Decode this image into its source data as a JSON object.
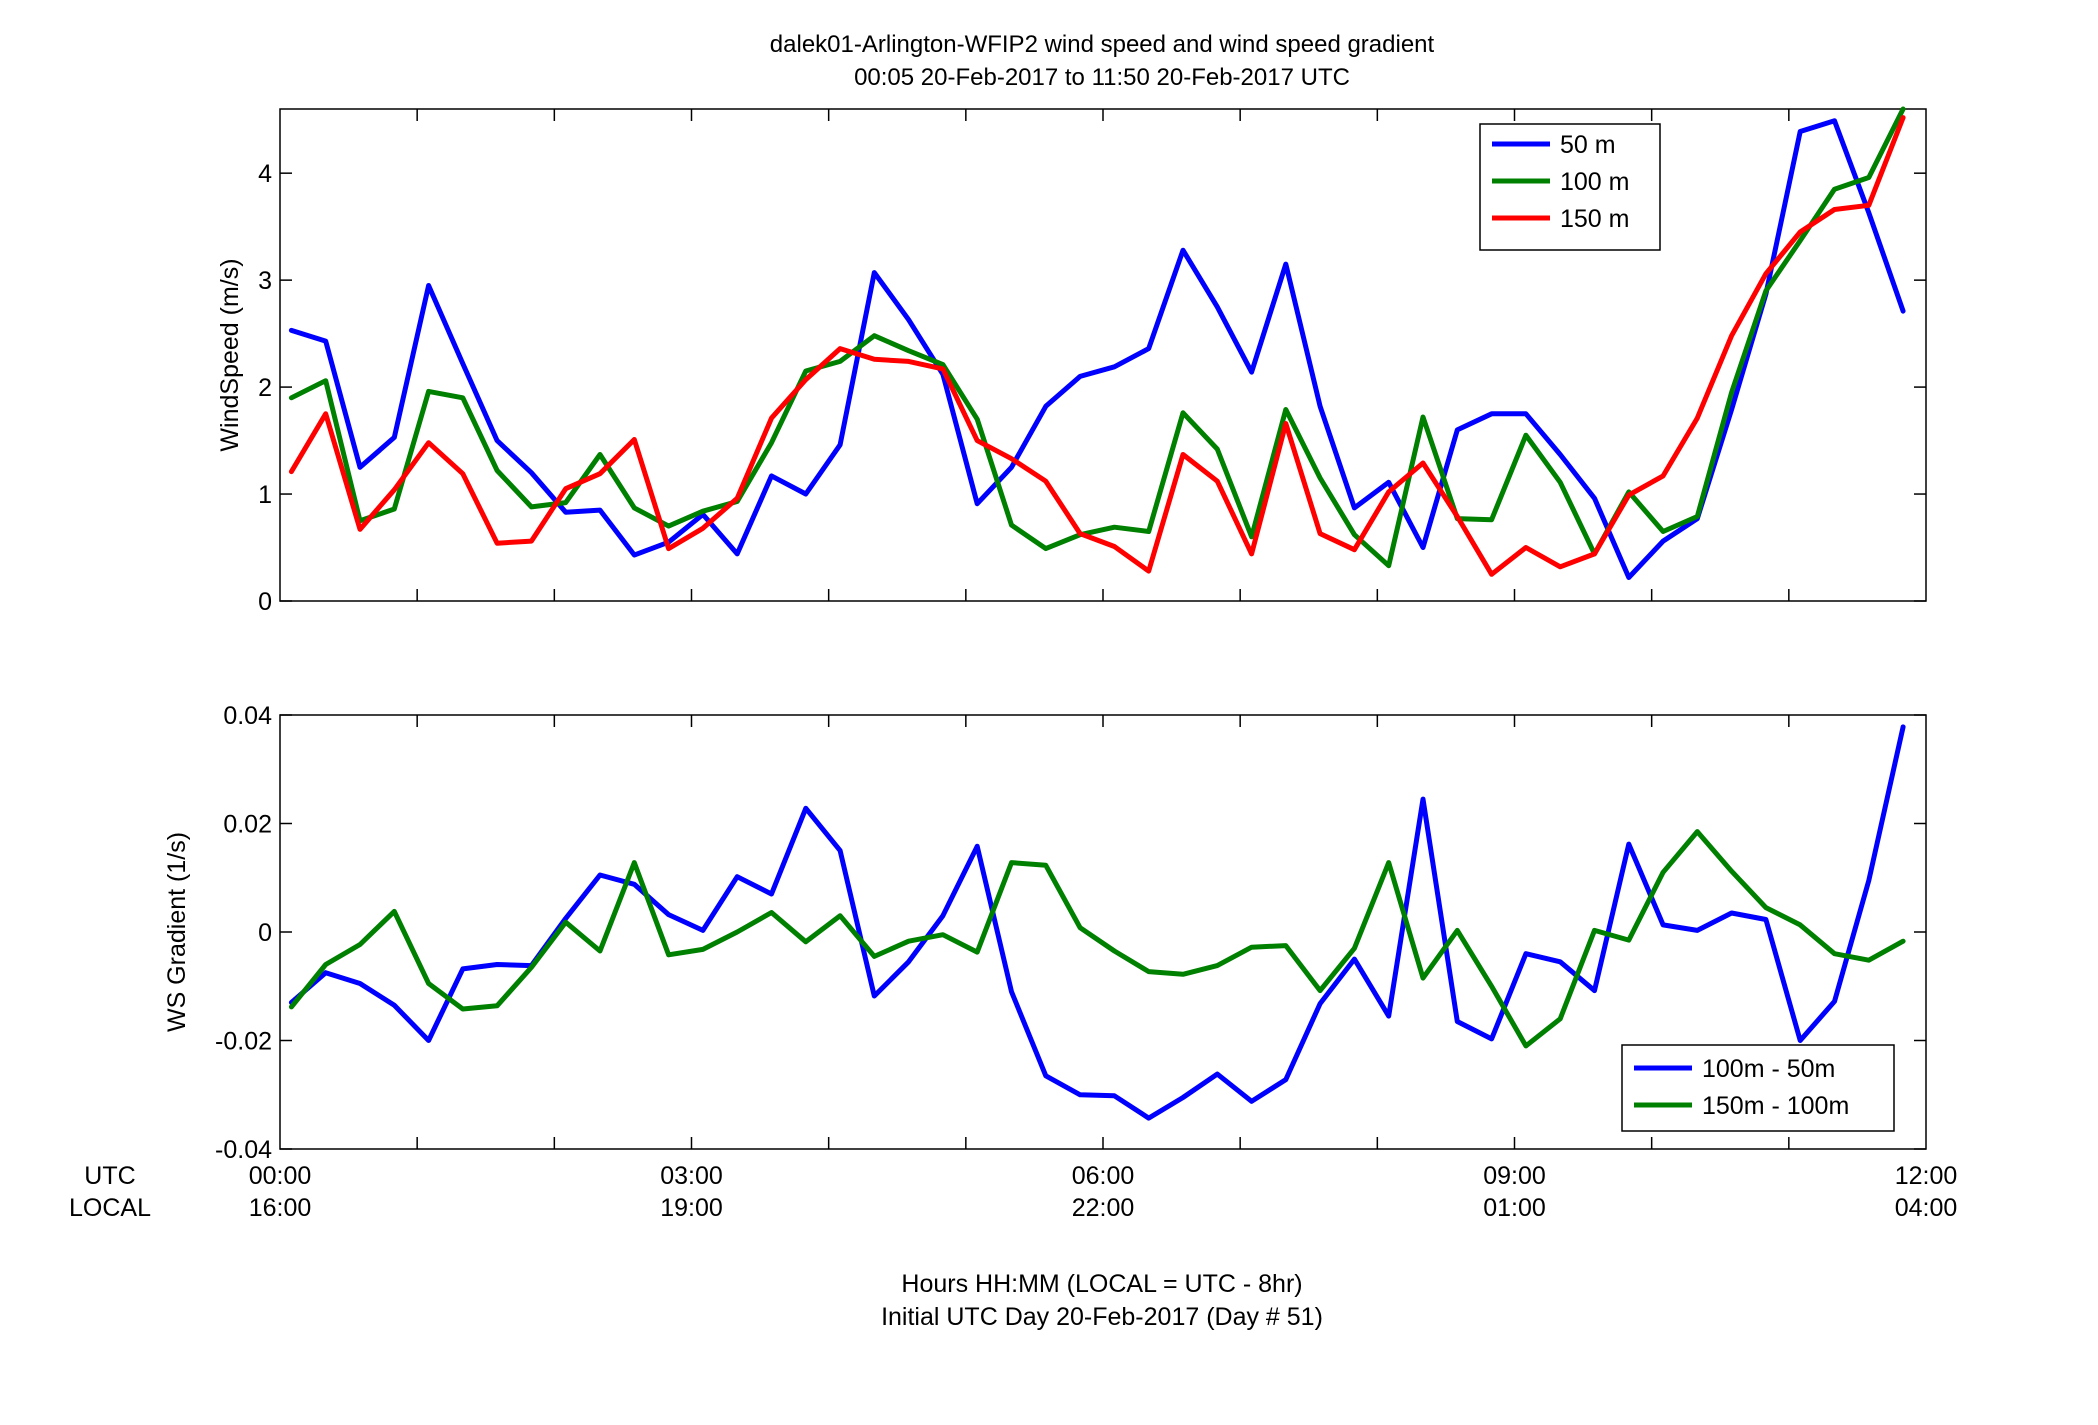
{
  "title_line1": "dalek01-Arlington-WFIP2  wind speed and wind speed gradient",
  "title_line2": "00:05 20-Feb-2017 to 11:50 20-Feb-2017  UTC",
  "row_labels": {
    "utc": "UTC",
    "local": "LOCAL"
  },
  "x_ticks": [
    {
      "h": 0,
      "utc": "00:00",
      "local": "16:00"
    },
    {
      "h": 3,
      "utc": "03:00",
      "local": "19:00"
    },
    {
      "h": 6,
      "utc": "06:00",
      "local": "22:00"
    },
    {
      "h": 9,
      "utc": "09:00",
      "local": "01:00"
    },
    {
      "h": 12,
      "utc": "12:00",
      "local": "04:00"
    }
  ],
  "xlabel_line1": "Hours HH:MM  (LOCAL = UTC - 8hr)",
  "xlabel_line2": "Initial UTC Day 20-Feb-2017 (Day # 51)",
  "chart_data": [
    {
      "type": "line",
      "ylabel": "WindSpeed (m/s)",
      "xlim": [
        0,
        12
      ],
      "ylim": [
        0,
        4.6
      ],
      "yticks": [
        0,
        1,
        2,
        3,
        4
      ],
      "ytick_labels": [
        "0",
        "1",
        "2",
        "3",
        "4"
      ],
      "grid": false,
      "legend_position": "top-right",
      "x": [
        0.083,
        0.333,
        0.583,
        0.833,
        1.083,
        1.333,
        1.583,
        1.833,
        2.083,
        2.333,
        2.583,
        2.833,
        3.083,
        3.333,
        3.583,
        3.833,
        4.083,
        4.333,
        4.583,
        4.833,
        5.083,
        5.333,
        5.583,
        5.833,
        6.083,
        6.333,
        6.583,
        6.833,
        7.083,
        7.333,
        7.583,
        7.833,
        8.083,
        8.333,
        8.583,
        8.833,
        9.083,
        9.333,
        9.583,
        9.833,
        10.083,
        10.333,
        10.583,
        10.833,
        11.083,
        11.333,
        11.583,
        11.833
      ],
      "series": [
        {
          "name": "50 m",
          "color": "#0000ff",
          "values": [
            2.53,
            2.43,
            1.25,
            1.53,
            2.95,
            2.22,
            1.5,
            1.2,
            0.83,
            0.85,
            0.43,
            0.55,
            0.81,
            0.44,
            1.17,
            1.0,
            1.46,
            3.07,
            2.63,
            2.12,
            0.91,
            1.25,
            1.82,
            2.1,
            2.19,
            2.36,
            3.28,
            2.75,
            2.14,
            3.15,
            1.82,
            0.87,
            1.11,
            0.5,
            1.6,
            1.75,
            1.75,
            1.37,
            0.96,
            0.22,
            0.56,
            0.77,
            1.79,
            2.87,
            4.39,
            4.49,
            3.63,
            2.71
          ]
        },
        {
          "name": "100 m",
          "color": "#008000",
          "values": [
            1.9,
            2.06,
            0.75,
            0.86,
            1.96,
            1.9,
            1.22,
            0.88,
            0.92,
            1.37,
            0.87,
            0.7,
            0.84,
            0.93,
            1.48,
            2.15,
            2.24,
            2.48,
            2.34,
            2.21,
            1.7,
            0.71,
            0.49,
            0.62,
            0.69,
            0.65,
            1.76,
            1.42,
            0.6,
            1.79,
            1.15,
            0.62,
            0.33,
            1.72,
            0.77,
            0.76,
            1.55,
            1.11,
            0.44,
            1.02,
            0.65,
            0.79,
            1.95,
            2.9,
            3.37,
            3.85,
            3.96,
            4.62
          ]
        },
        {
          "name": "150 m",
          "color": "#ff0000",
          "values": [
            1.21,
            1.75,
            0.67,
            1.04,
            1.48,
            1.19,
            0.54,
            0.56,
            1.05,
            1.19,
            1.51,
            0.49,
            0.68,
            0.96,
            1.71,
            2.07,
            2.36,
            2.26,
            2.24,
            2.17,
            1.5,
            1.33,
            1.12,
            0.63,
            0.51,
            0.28,
            1.37,
            1.12,
            0.44,
            1.66,
            0.63,
            0.48,
            1.02,
            1.29,
            0.79,
            0.25,
            0.5,
            0.32,
            0.44,
            0.99,
            1.17,
            1.71,
            2.48,
            3.06,
            3.45,
            3.66,
            3.7,
            4.52
          ]
        }
      ]
    },
    {
      "type": "line",
      "ylabel": "WS Gradient (1/s)",
      "xlim": [
        0,
        12
      ],
      "ylim": [
        -0.04,
        0.04
      ],
      "yticks": [
        -0.04,
        -0.02,
        0,
        0.02,
        0.04
      ],
      "ytick_labels": [
        "-0.04",
        "-0.02",
        "0",
        "0.02",
        "0.04"
      ],
      "grid": false,
      "legend_position": "bottom-right",
      "x": [
        0.083,
        0.333,
        0.583,
        0.833,
        1.083,
        1.333,
        1.583,
        1.833,
        2.083,
        2.333,
        2.583,
        2.833,
        3.083,
        3.333,
        3.583,
        3.833,
        4.083,
        4.333,
        4.583,
        4.833,
        5.083,
        5.333,
        5.583,
        5.833,
        6.083,
        6.333,
        6.583,
        6.833,
        7.083,
        7.333,
        7.583,
        7.833,
        8.083,
        8.333,
        8.583,
        8.833,
        9.083,
        9.333,
        9.583,
        9.833,
        10.083,
        10.333,
        10.583,
        10.833,
        11.083,
        11.333,
        11.583,
        11.833
      ],
      "series": [
        {
          "name": "100m - 50m",
          "color": "#0000ff",
          "values": [
            -0.013,
            -0.0075,
            -0.0095,
            -0.0135,
            -0.02,
            -0.0068,
            -0.006,
            -0.0062,
            0.0025,
            0.0105,
            0.0088,
            0.0032,
            0.0003,
            0.0102,
            0.007,
            0.0228,
            0.015,
            -0.0118,
            -0.0055,
            0.003,
            0.0158,
            -0.011,
            -0.0265,
            -0.03,
            -0.0302,
            -0.0343,
            -0.0305,
            -0.0262,
            -0.0312,
            -0.0272,
            -0.0132,
            -0.005,
            -0.0155,
            0.0245,
            -0.0165,
            -0.0197,
            -0.004,
            -0.0055,
            -0.0108,
            0.0162,
            0.0013,
            0.0003,
            0.0035,
            0.0023,
            -0.02,
            -0.0128,
            0.0095,
            0.0378
          ]
        },
        {
          "name": "150m - 100m",
          "color": "#008000",
          "values": [
            -0.0138,
            -0.006,
            -0.0023,
            0.0038,
            -0.0095,
            -0.0142,
            -0.0136,
            -0.0065,
            0.0018,
            -0.0035,
            0.0128,
            -0.0042,
            -0.0032,
            0.0,
            0.0036,
            -0.0018,
            0.003,
            -0.0045,
            -0.0017,
            -0.0005,
            -0.0037,
            0.0128,
            0.0123,
            0.0008,
            -0.0035,
            -0.0073,
            -0.0078,
            -0.0062,
            -0.0028,
            -0.0025,
            -0.0108,
            -0.003,
            0.0128,
            -0.0085,
            0.0003,
            -0.01,
            -0.021,
            -0.016,
            0.0003,
            -0.0015,
            0.011,
            0.0185,
            0.0112,
            0.0045,
            0.0013,
            -0.004,
            -0.0052,
            -0.0017
          ]
        }
      ]
    }
  ]
}
